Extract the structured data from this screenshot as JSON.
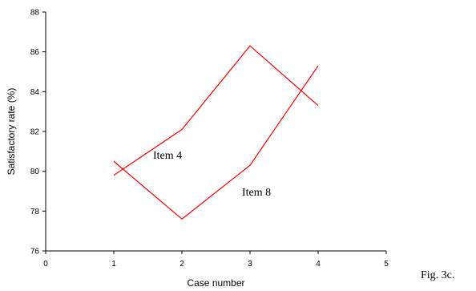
{
  "chart_data": {
    "type": "line",
    "xlabel": "Case number",
    "ylabel": "Satisfactory rate (%)",
    "xlim": [
      0,
      5
    ],
    "ylim": [
      76,
      88
    ],
    "xticks": [
      0,
      1,
      2,
      3,
      4,
      5
    ],
    "yticks": [
      76,
      78,
      80,
      82,
      84,
      86,
      88
    ],
    "grid": false,
    "legend": "none",
    "series": [
      {
        "name": "Item 4",
        "x": [
          1,
          2,
          3,
          4
        ],
        "y": [
          79.8,
          82.1,
          86.3,
          83.3
        ],
        "color": "#ff0000"
      },
      {
        "name": "Item 8",
        "x": [
          1,
          2,
          3,
          4
        ],
        "y": [
          80.5,
          77.6,
          80.3,
          85.3
        ],
        "color": "#ff0000"
      }
    ]
  },
  "caption": "Fig. 3c."
}
